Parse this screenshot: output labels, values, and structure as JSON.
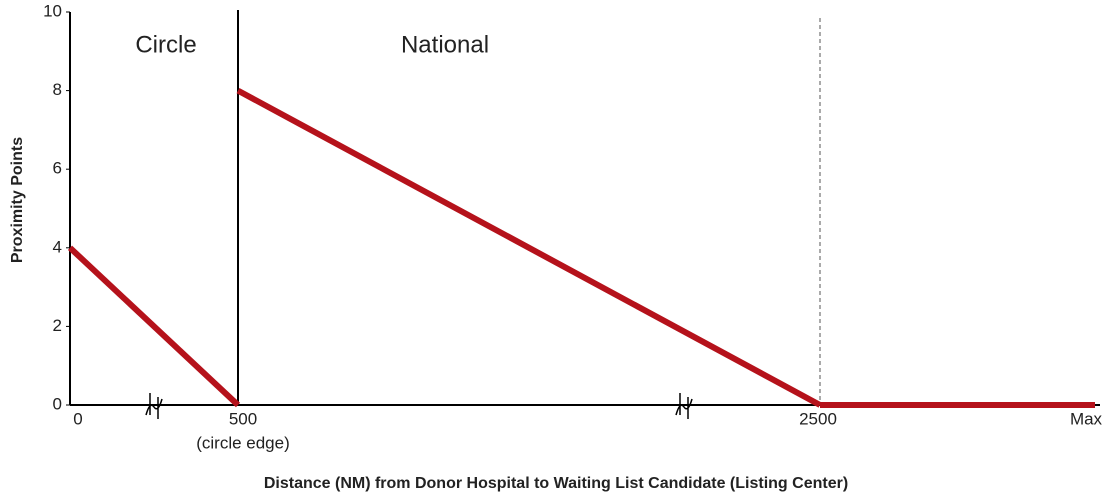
{
  "chart_data": {
    "type": "line",
    "x_label": "Distance (NM) from Donor Hospital to Waiting List Candidate (Listing Center)",
    "y_label": "Proximity Points",
    "categories": [
      "0",
      "500",
      "2500",
      "Max"
    ],
    "x_note": "(circle edge)",
    "annotations": [
      "Circle",
      "National"
    ],
    "series": [
      {
        "color": "#b5121b",
        "values": [
          4,
          0,
          null,
          null
        ]
      },
      {
        "color": "#b5121b",
        "values": [
          null,
          8,
          0,
          null
        ]
      },
      {
        "color": "#b5121b",
        "values": [
          null,
          null,
          0,
          0
        ]
      }
    ],
    "ylim": [
      0,
      10
    ],
    "yticks": [
      0,
      2,
      4,
      6,
      8,
      10
    ]
  }
}
